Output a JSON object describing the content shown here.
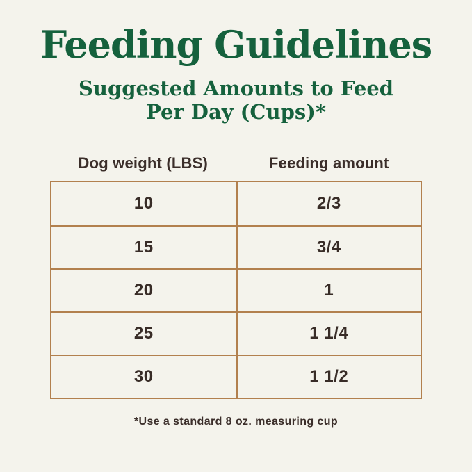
{
  "title": "Feeding Guidelines",
  "subtitle": {
    "line1": "Suggested Amounts to Feed",
    "line2": "Per Day (Cups)*"
  },
  "table": {
    "columns": [
      "Dog weight (LBS)",
      "Feeding amount"
    ],
    "rows": [
      {
        "weight": "10",
        "amount": "2/3"
      },
      {
        "weight": "15",
        "amount": "3/4"
      },
      {
        "weight": "20",
        "amount": "1"
      },
      {
        "weight": "25",
        "amount": "1 1/4"
      },
      {
        "weight": "30",
        "amount": "1 1/2"
      }
    ]
  },
  "footnote": "*Use a standard 8 oz. measuring cup",
  "colors": {
    "background": "#f4f3ec",
    "title_green": "#15613d",
    "table_border": "#b2804e",
    "text_dark": "#3b2e2a"
  }
}
